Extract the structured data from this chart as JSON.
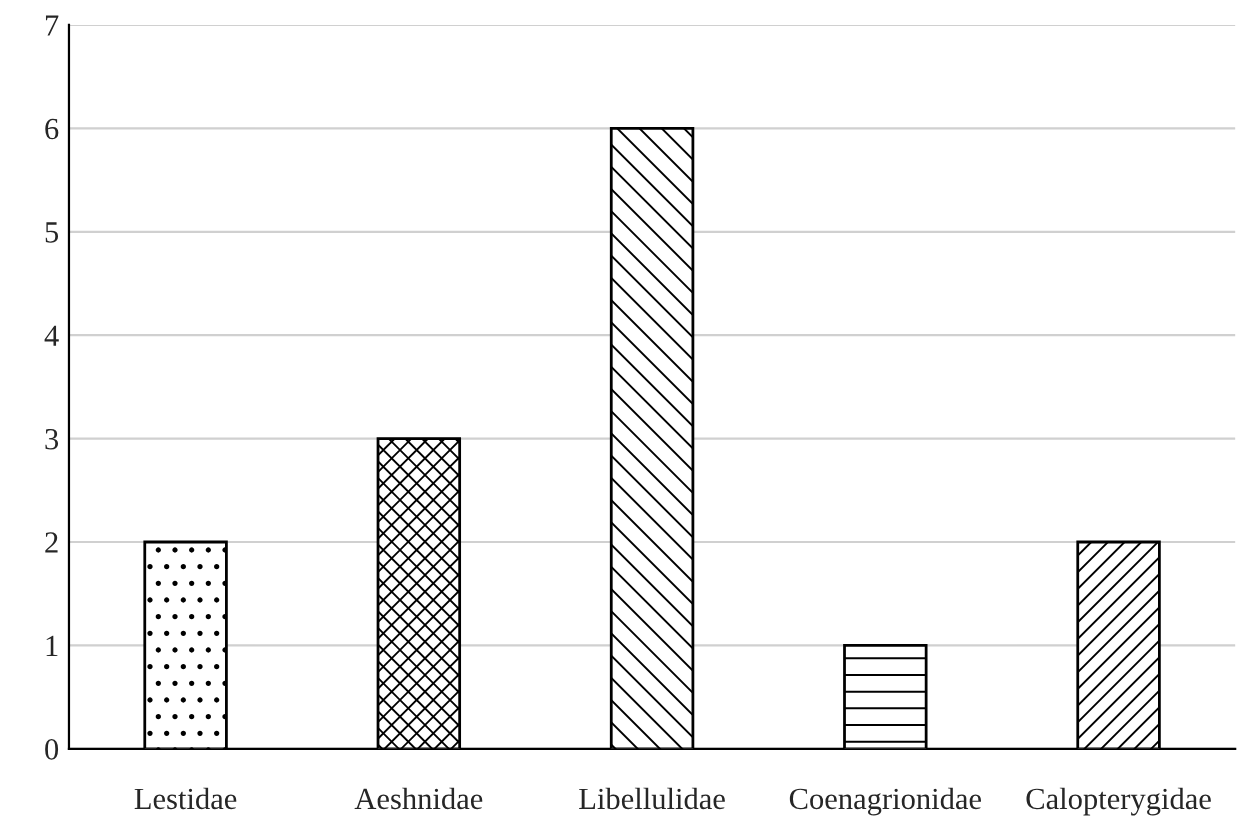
{
  "chart_data": {
    "type": "bar",
    "categories": [
      "Lestidae",
      "Aeshnidae",
      "Libellulidae",
      "Coenagrionidae",
      "Calopterygidae"
    ],
    "values": [
      2,
      3,
      6,
      1,
      2
    ],
    "colors": [
      "#000000",
      "#000000",
      "#000000",
      "#000000",
      "#000000"
    ],
    "ylim": [
      0,
      7
    ],
    "yticks": [
      0,
      1,
      2,
      3,
      4,
      5,
      6,
      7
    ],
    "grid": "y",
    "legend": false
  }
}
